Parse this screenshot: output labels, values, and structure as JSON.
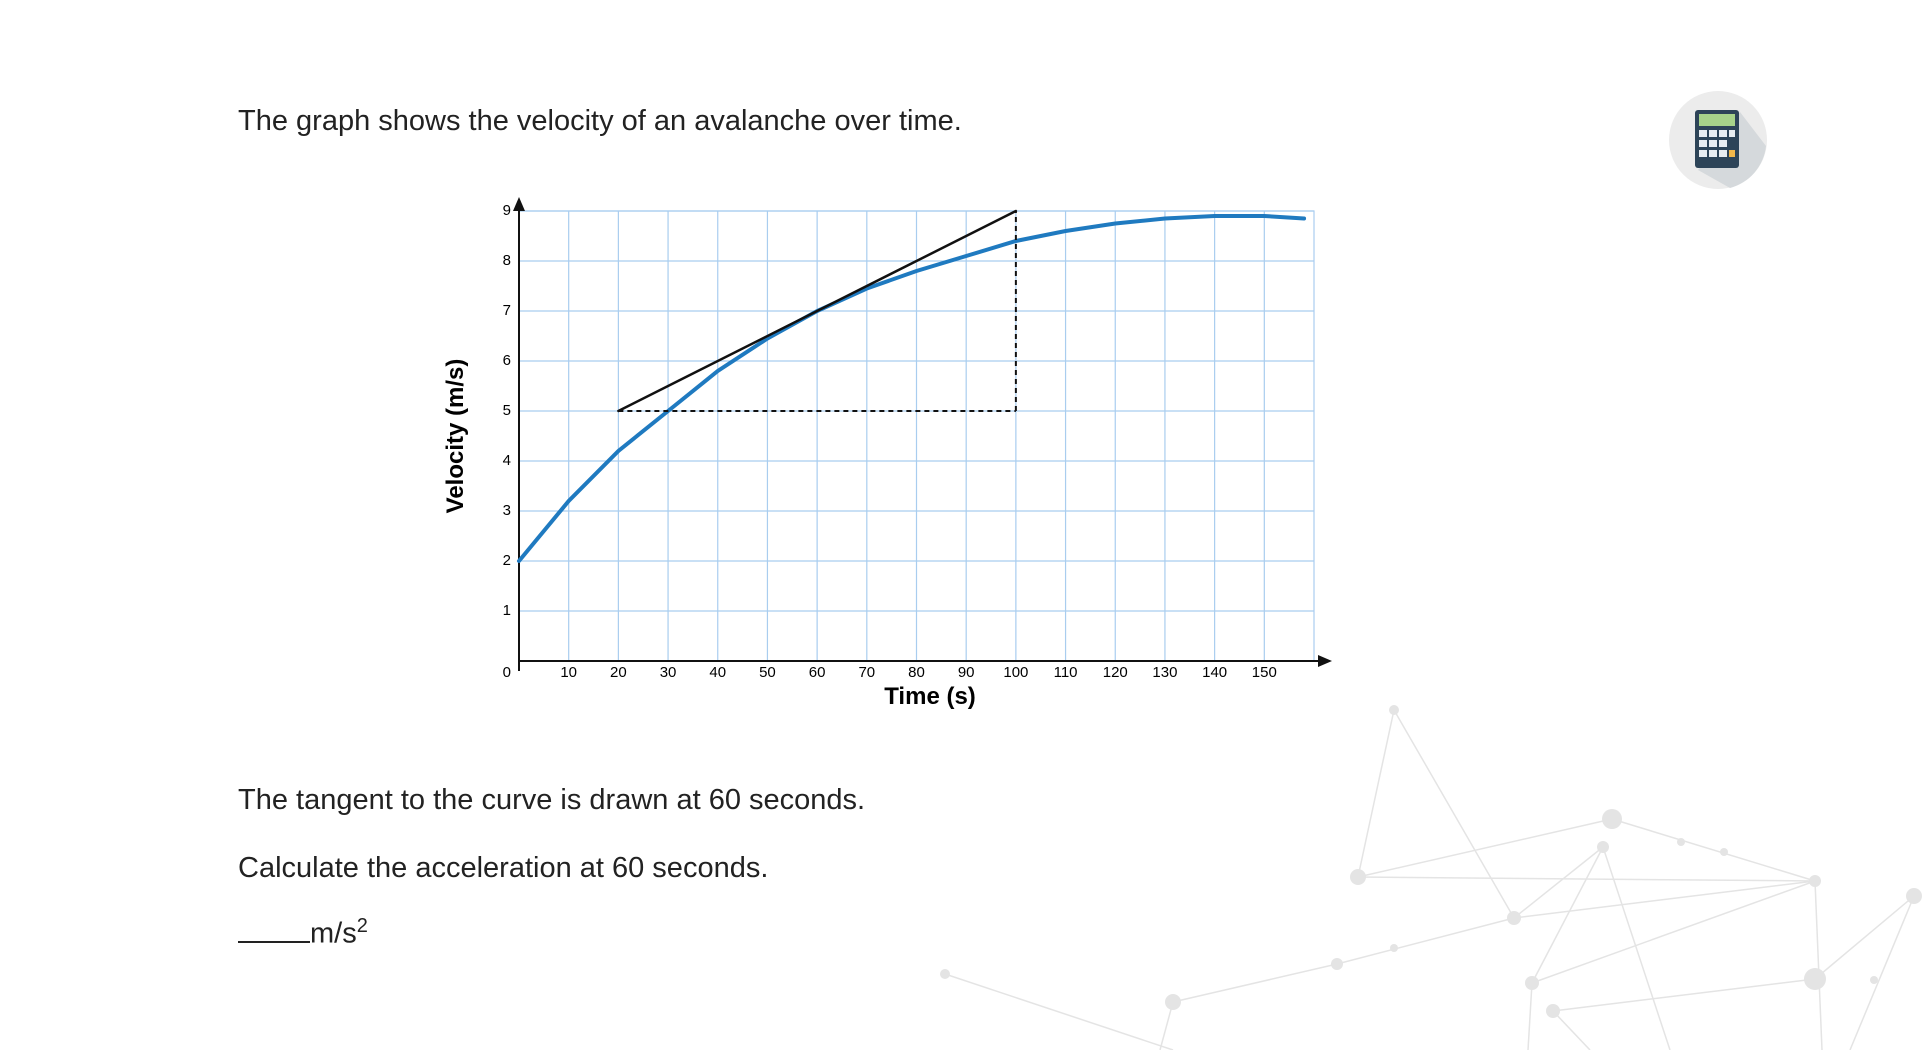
{
  "question": {
    "intro": "The graph shows the velocity of an avalanche over time.",
    "tangent_note": "The tangent to the curve is drawn at 60 seconds.",
    "prompt": "Calculate the acceleration at 60 seconds.",
    "answer_unit": "m/s",
    "answer_unit_power": "2"
  },
  "chart_data": {
    "type": "line",
    "x_label": "Time (s)",
    "y_label": "Velocity (m/s)",
    "xlim": [
      0,
      160
    ],
    "ylim": [
      0,
      9
    ],
    "xticks": [
      10,
      20,
      30,
      40,
      50,
      60,
      70,
      80,
      90,
      100,
      110,
      120,
      130,
      140,
      150
    ],
    "yticks": [
      0,
      1,
      2,
      3,
      4,
      5,
      6,
      7,
      8,
      9
    ],
    "grid": true,
    "grid_color": "#a9cdef",
    "series": [
      {
        "color": "#1f7ac0",
        "dashed": false,
        "x": [
          0,
          10,
          20,
          30,
          40,
          50,
          60,
          70,
          80,
          90,
          100,
          110,
          120,
          130,
          140,
          150,
          158
        ],
        "values": [
          2,
          3.2,
          4.2,
          5.0,
          5.8,
          6.45,
          7.0,
          7.45,
          7.8,
          8.1,
          8.4,
          8.6,
          8.75,
          8.85,
          8.9,
          8.9,
          8.85
        ]
      },
      {
        "color": "#111111",
        "dashed": false,
        "x": [
          20,
          100
        ],
        "values": [
          5,
          9
        ]
      },
      {
        "color": "#111111",
        "dashed": true,
        "x": [
          20,
          100
        ],
        "values": [
          5,
          5
        ]
      },
      {
        "color": "#111111",
        "dashed": true,
        "x": [
          100,
          100
        ],
        "values": [
          5,
          9
        ]
      }
    ]
  }
}
